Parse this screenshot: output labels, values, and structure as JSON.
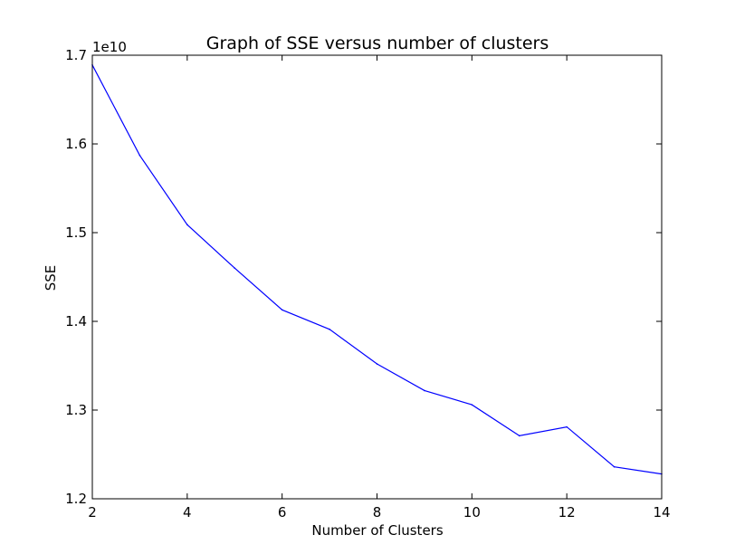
{
  "chart_data": {
    "type": "line",
    "title": "Graph of SSE versus number of clusters",
    "xlabel": "Number of Clusters",
    "ylabel": "SSE",
    "y_offset_label": "1e10",
    "xlim": [
      2,
      14
    ],
    "ylim": [
      1.2,
      1.7
    ],
    "x_ticks": [
      2,
      4,
      6,
      8,
      10,
      12,
      14
    ],
    "y_ticks": [
      1.2,
      1.3,
      1.4,
      1.5,
      1.6,
      1.7
    ],
    "x_tick_labels": [
      "2",
      "4",
      "6",
      "8",
      "10",
      "12",
      "14"
    ],
    "y_tick_labels": [
      "1.2",
      "1.3",
      "1.4",
      "1.5",
      "1.6",
      "1.7"
    ],
    "grid": false,
    "series": [
      {
        "color": "#0000ff",
        "x": [
          2,
          3,
          4,
          5,
          6,
          7,
          8,
          9,
          10,
          11,
          12,
          13,
          14
        ],
        "y": [
          1.689,
          1.587,
          1.509,
          1.46,
          1.413,
          1.391,
          1.352,
          1.322,
          1.306,
          1.271,
          1.281,
          1.236,
          1.228
        ]
      }
    ]
  }
}
